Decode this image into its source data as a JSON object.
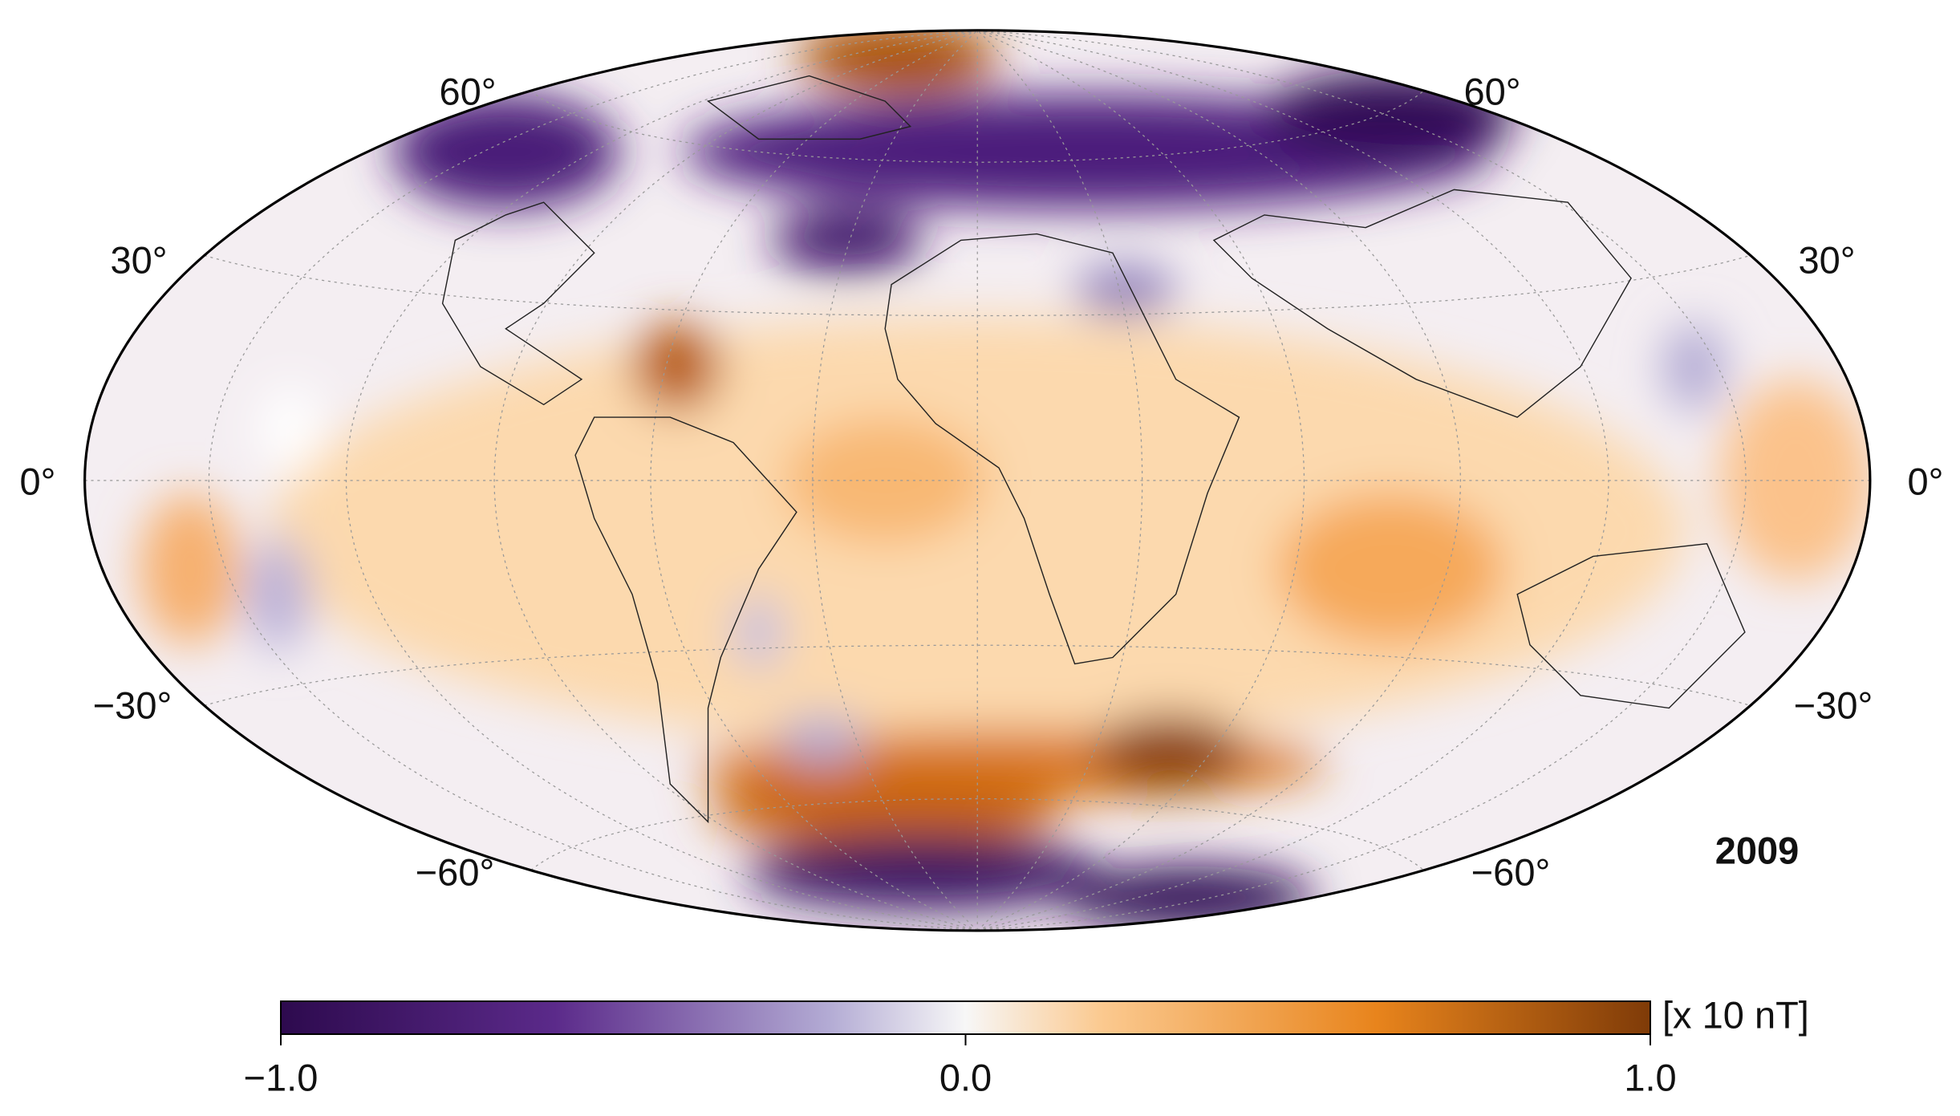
{
  "map": {
    "year": "2009",
    "lat_labels": [
      "60°",
      "30°",
      "0°",
      "−30°",
      "−60°"
    ]
  },
  "colorbar": {
    "lim": [
      -1,
      1
    ],
    "ticks": [
      {
        "value": -1,
        "label": "−1.0"
      },
      {
        "value": 0,
        "label": "0.0"
      },
      {
        "value": 1,
        "label": "1.0"
      }
    ],
    "unit": "[x 10 nT]"
  }
}
